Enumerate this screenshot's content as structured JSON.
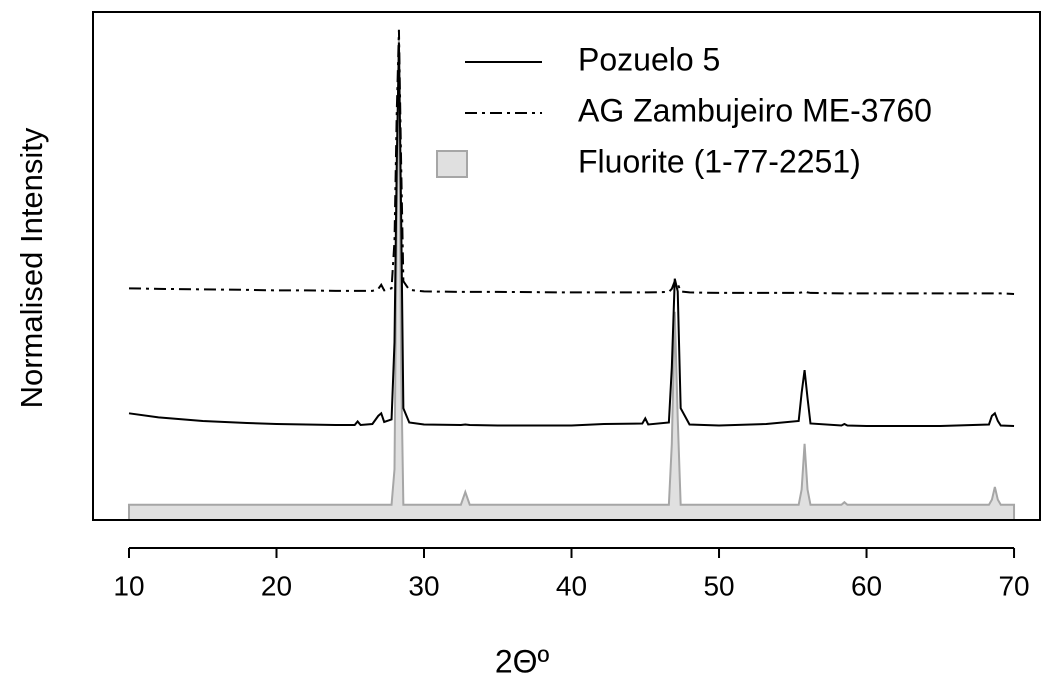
{
  "chart_data": {
    "type": "line",
    "xlabel": "2Θº",
    "ylabel": "Normalised Intensity",
    "xlim": [
      7.56,
      71.76
    ],
    "ylim": [
      0,
      100
    ],
    "xticks": [
      10,
      20,
      30,
      40,
      50,
      60,
      70
    ],
    "legend": "top-right",
    "x": [
      10,
      12,
      15,
      18,
      20,
      22,
      24,
      25.3,
      25.5,
      25.7,
      26.5,
      26.9,
      27.1,
      27.3,
      27.8,
      28.0,
      28.15,
      28.3,
      28.45,
      28.6,
      29,
      30,
      32.5,
      32.8,
      33.1,
      35,
      40,
      42.2,
      44.8,
      45,
      45.2,
      46.6,
      46.8,
      47.0,
      47.2,
      47.4,
      48,
      50,
      53.2,
      55.4,
      55.6,
      55.8,
      56.0,
      56.2,
      58.3,
      58.5,
      58.7,
      60,
      65,
      68.3,
      68.5,
      68.7,
      68.9,
      69.1,
      70
    ],
    "series": [
      {
        "name": "Pozuelo 5",
        "color": "#000000",
        "style": "solid",
        "values": [
          21.0,
          20.2,
          19.5,
          19.1,
          18.9,
          18.8,
          18.7,
          18.7,
          19.4,
          18.7,
          18.9,
          20.5,
          21.0,
          19.3,
          19.8,
          35,
          70,
          94,
          60,
          22,
          19.2,
          18.8,
          18.7,
          18.8,
          18.7,
          18.6,
          18.6,
          18.9,
          19.0,
          20.0,
          18.8,
          19.2,
          30,
          47.5,
          45,
          22,
          18.8,
          18.6,
          18.9,
          19.5,
          25,
          29.5,
          24,
          19,
          18.6,
          18.9,
          18.6,
          18.5,
          18.5,
          18.8,
          20.5,
          21.0,
          19.5,
          18.6,
          18.5
        ]
      },
      {
        "name": "AG Zambujeiro ME-3760",
        "color": "#000000",
        "style": "dashdot",
        "values": [
          45.6,
          45.5,
          45.4,
          45.3,
          45.2,
          45.2,
          45.1,
          45.1,
          45.1,
          45.1,
          45.1,
          45.5,
          46.3,
          45.2,
          45.6,
          55,
          80,
          96.5,
          70,
          47,
          45.3,
          45.0,
          44.9,
          44.9,
          44.9,
          44.9,
          44.8,
          44.8,
          44.8,
          44.8,
          44.8,
          44.9,
          45.5,
          47.0,
          46.5,
          45.0,
          44.8,
          44.7,
          44.7,
          44.7,
          44.8,
          45.0,
          44.8,
          44.7,
          44.6,
          44.6,
          44.6,
          44.6,
          44.6,
          44.6,
          44.6,
          44.6,
          44.6,
          44.6,
          44.5
        ]
      },
      {
        "name": "Fluorite (1-77-2251)",
        "color": "#a6a6a6",
        "fill": "#e0e0e0",
        "style": "area",
        "values": [
          3,
          3,
          3,
          3,
          3,
          3,
          3,
          3,
          3,
          3,
          3,
          3,
          3,
          3,
          3,
          10,
          60,
          95,
          30,
          3,
          3,
          3,
          3,
          5.5,
          3,
          3,
          3,
          3,
          3,
          3,
          3,
          3,
          15,
          41,
          20,
          3,
          3,
          3,
          3,
          3,
          6,
          15,
          6,
          3,
          3,
          3.5,
          3,
          3,
          3,
          3,
          4,
          6.5,
          4,
          3,
          3
        ]
      }
    ]
  }
}
